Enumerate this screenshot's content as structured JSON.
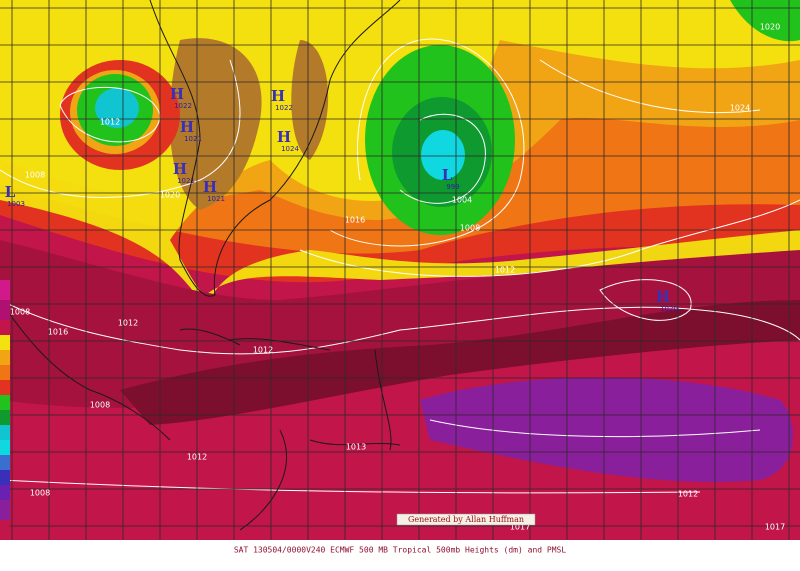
{
  "map": {
    "isobar_labels": [
      "1020",
      "1024",
      "1012",
      "1008",
      "1020",
      "1016",
      "1004",
      "1008",
      "1012",
      "1012",
      "1016",
      "1008",
      "1012",
      "1008",
      "1013",
      "1012",
      "1012",
      "1017",
      "1017",
      "1008"
    ],
    "centers": [
      {
        "symbol": "H",
        "value": "1022"
      },
      {
        "symbol": "H",
        "value": "1021"
      },
      {
        "symbol": "H",
        "value": "1021"
      },
      {
        "symbol": "H",
        "value": "1021"
      },
      {
        "symbol": "H",
        "value": "1022"
      },
      {
        "symbol": "H",
        "value": "1024"
      },
      {
        "symbol": "L",
        "value": "1003"
      },
      {
        "symbol": "L",
        "value": "999"
      },
      {
        "symbol": "H",
        "value": "1020"
      }
    ]
  },
  "credit": "Generated by Allan Huffman",
  "caption": "SAT 130504/0000V240  ECMWF  500 MB Tropical 500mb Heights (dm) and PMSL"
}
